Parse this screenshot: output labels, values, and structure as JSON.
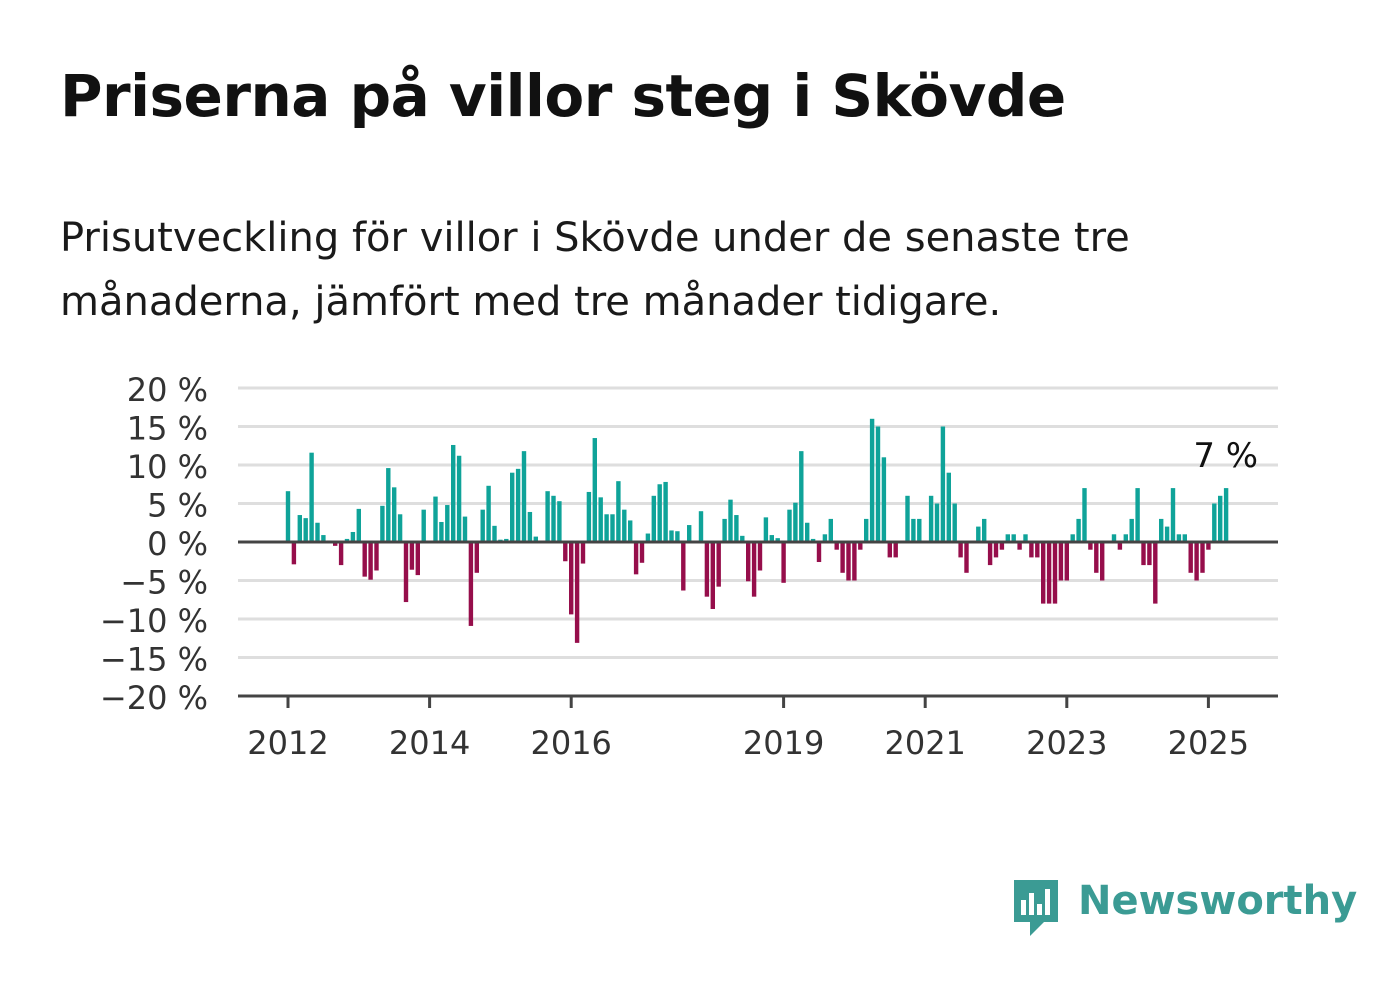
{
  "title": "Priserna på villor steg i Skövde",
  "subtitle": "Prisutveckling för villor i Skövde under de senaste tre månaderna, jämfört med tre månader tidigare.",
  "logo": {
    "text": "Newsworthy",
    "icon": "newsworthy-logo-icon"
  },
  "colors": {
    "positive": "#0fa399",
    "negative": "#960e4b",
    "grid": "#dedede",
    "axis": "#444444",
    "brand": "#3b9b94"
  },
  "chart_data": {
    "type": "bar",
    "title": "Priserna på villor steg i Skövde",
    "subtitle": "Prisutveckling för villor i Skövde under de senaste tre månaderna, jämfört med tre månader tidigare.",
    "unit": "%",
    "ylim": [
      -20,
      20
    ],
    "yticks": [
      20,
      15,
      10,
      5,
      0,
      -5,
      -10,
      -15,
      -20
    ],
    "ytick_labels": [
      "20 %",
      "15 %",
      "10 %",
      "5 %",
      "0 %",
      "−5 %",
      "−10 %",
      "−15 %",
      "−20 %"
    ],
    "xtick_labels": [
      "2012",
      "2014",
      "2016",
      "2019",
      "2021",
      "2023",
      "2025"
    ],
    "xtick_years": [
      2012,
      2014,
      2016,
      2019,
      2021,
      2023,
      2025
    ],
    "x_start": "2012-01",
    "interval": "month",
    "grid": true,
    "legend": "none",
    "annotation": {
      "text": "7 %",
      "target": "last"
    },
    "values": [
      6.6,
      -2.9,
      3.5,
      3.1,
      11.6,
      2.5,
      0.9,
      0.2,
      -0.5,
      -3.0,
      0.4,
      1.3,
      4.3,
      -4.5,
      -4.9,
      -3.7,
      4.7,
      9.6,
      7.1,
      3.6,
      -7.8,
      -3.6,
      -4.3,
      4.2,
      0.1,
      5.9,
      2.6,
      4.8,
      12.6,
      11.2,
      3.3,
      -10.9,
      -4.0,
      4.2,
      7.3,
      2.1,
      0.3,
      0.4,
      9.0,
      9.5,
      11.8,
      3.9,
      0.7,
      0.1,
      6.6,
      6.0,
      5.3,
      -2.5,
      -9.4,
      -13.1,
      -2.8,
      6.5,
      13.5,
      5.8,
      3.6,
      3.6,
      7.9,
      4.2,
      2.8,
      -4.2,
      -2.7,
      1.1,
      6.0,
      7.5,
      7.8,
      1.5,
      1.4,
      -6.3,
      2.2,
      0.1,
      4.0,
      -7.1,
      -8.7,
      -5.8,
      3.0,
      5.5,
      3.5,
      0.8,
      -5.1,
      -7.1,
      -3.7,
      3.2,
      0.9,
      0.5,
      -5.3,
      4.2,
      5.1,
      11.8,
      2.5,
      0.4,
      -2.6,
      1.0,
      3.0,
      -1.0,
      -4.0,
      -5.0,
      -5.0,
      -1.0,
      3.0,
      16.0,
      15.0,
      11.0,
      -2.0,
      -2.0,
      0.0,
      6.0,
      3.0,
      3.0,
      0.0,
      6.0,
      5.0,
      15.0,
      9.0,
      5.0,
      -2.0,
      -4.0,
      0.0,
      2.0,
      3.0,
      -3.0,
      -2.0,
      -1.0,
      1.0,
      1.0,
      -1.0,
      1.0,
      -2.0,
      -2.0,
      -8.0,
      -8.0,
      -8.0,
      -5.0,
      -5.0,
      1.0,
      3.0,
      7.0,
      -1.0,
      -4.0,
      -5.0,
      0.0,
      1.0,
      -1.0,
      1.0,
      3.0,
      7.0,
      -3.0,
      -3.0,
      -8.0,
      3.0,
      2.0,
      7.0,
      1.0,
      1.0,
      -4.0,
      -5.0,
      -4.0,
      -1.0,
      5.0,
      6.0,
      7.0
    ]
  }
}
